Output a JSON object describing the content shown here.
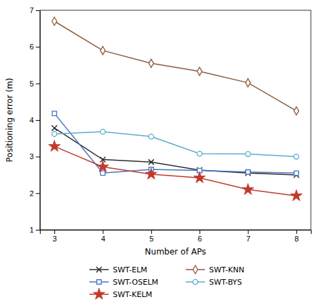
{
  "chart_data": {
    "type": "line",
    "xlabel": "Number of APs",
    "ylabel": "Positioning error (m)",
    "x": [
      3,
      4,
      5,
      6,
      7,
      8
    ],
    "series": [
      {
        "name": "SWT-ELM",
        "color": "#2b2b2b",
        "marker": "x",
        "values": [
          3.78,
          2.92,
          2.85,
          2.63,
          2.55,
          2.5
        ]
      },
      {
        "name": "SWT-OSELM",
        "color": "#4472c4",
        "marker": "square",
        "values": [
          4.18,
          2.55,
          2.65,
          2.62,
          2.58,
          2.55
        ]
      },
      {
        "name": "SWT-KELM",
        "color": "#c0392b",
        "marker": "star",
        "values": [
          3.28,
          2.72,
          2.52,
          2.42,
          2.1,
          1.93
        ]
      },
      {
        "name": "SWT-KNN",
        "color": "#8b5a3c",
        "marker": "diamond",
        "values": [
          6.7,
          5.9,
          5.55,
          5.33,
          5.02,
          4.25
        ]
      },
      {
        "name": "SWT-BYS",
        "color": "#5aabcf",
        "marker": "circle",
        "values": [
          3.62,
          3.68,
          3.55,
          3.08,
          3.07,
          3.0
        ]
      }
    ],
    "xlim": [
      2.7,
      8.3
    ],
    "xticks": [
      3,
      4,
      5,
      6,
      7,
      8
    ],
    "ylim": [
      1,
      7
    ],
    "yticks": [
      1,
      2,
      3,
      4,
      5,
      6,
      7
    ],
    "grid": false,
    "legend": "bottom"
  }
}
